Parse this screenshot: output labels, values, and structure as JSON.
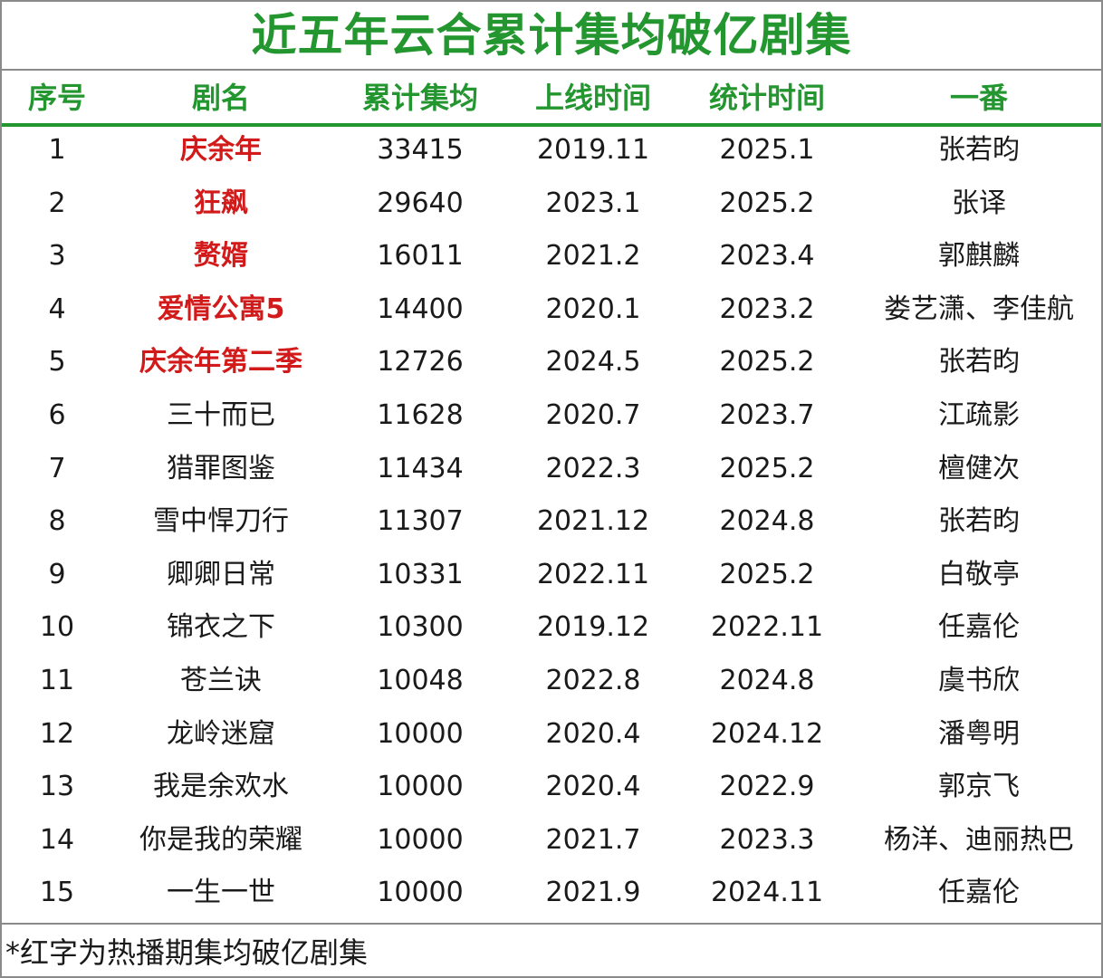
{
  "title": "近五年云合累计集均破亿剧集",
  "colors": {
    "accent": "#23962f",
    "hot_red": "#d31a1a"
  },
  "columns": [
    "序号",
    "剧名",
    "累计集均",
    "上线时间",
    "统计时间",
    "一番"
  ],
  "rows": [
    {
      "rank": "1",
      "name": "庆余年",
      "avg": "33415",
      "launch": "2019.11",
      "stat": "2025.1",
      "lead": "张若昀",
      "hot": true
    },
    {
      "rank": "2",
      "name": "狂飙",
      "avg": "29640",
      "launch": "2023.1",
      "stat": "2025.2",
      "lead": "张译",
      "hot": true
    },
    {
      "rank": "3",
      "name": "赘婿",
      "avg": "16011",
      "launch": "2021.2",
      "stat": "2023.4",
      "lead": "郭麒麟",
      "hot": true
    },
    {
      "rank": "4",
      "name": "爱情公寓5",
      "avg": "14400",
      "launch": "2020.1",
      "stat": "2023.2",
      "lead": "娄艺潇、李佳航",
      "hot": true
    },
    {
      "rank": "5",
      "name": "庆余年第二季",
      "avg": "12726",
      "launch": "2024.5",
      "stat": "2025.2",
      "lead": "张若昀",
      "hot": true
    },
    {
      "rank": "6",
      "name": "三十而已",
      "avg": "11628",
      "launch": "2020.7",
      "stat": "2023.7",
      "lead": "江疏影",
      "hot": false
    },
    {
      "rank": "7",
      "name": "猎罪图鉴",
      "avg": "11434",
      "launch": "2022.3",
      "stat": "2025.2",
      "lead": "檀健次",
      "hot": false
    },
    {
      "rank": "8",
      "name": "雪中悍刀行",
      "avg": "11307",
      "launch": "2021.12",
      "stat": "2024.8",
      "lead": "张若昀",
      "hot": false
    },
    {
      "rank": "9",
      "name": "卿卿日常",
      "avg": "10331",
      "launch": "2022.11",
      "stat": "2025.2",
      "lead": "白敬亭",
      "hot": false
    },
    {
      "rank": "10",
      "name": "锦衣之下",
      "avg": "10300",
      "launch": "2019.12",
      "stat": "2022.11",
      "lead": "任嘉伦",
      "hot": false
    },
    {
      "rank": "11",
      "name": "苍兰诀",
      "avg": "10048",
      "launch": "2022.8",
      "stat": "2024.8",
      "lead": "虞书欣",
      "hot": false
    },
    {
      "rank": "12",
      "name": "龙岭迷窟",
      "avg": "10000",
      "launch": "2020.4",
      "stat": "2024.12",
      "lead": "潘粤明",
      "hot": false
    },
    {
      "rank": "13",
      "name": "我是余欢水",
      "avg": "10000",
      "launch": "2020.4",
      "stat": "2022.9",
      "lead": "郭京飞",
      "hot": false
    },
    {
      "rank": "14",
      "name": "你是我的荣耀",
      "avg": "10000",
      "launch": "2021.7",
      "stat": "2023.3",
      "lead": "杨洋、迪丽热巴",
      "hot": false
    },
    {
      "rank": "15",
      "name": "一生一世",
      "avg": "10000",
      "launch": "2021.9",
      "stat": "2024.11",
      "lead": "任嘉伦",
      "hot": false
    }
  ],
  "footnote": "*红字为热播期集均破亿剧集"
}
